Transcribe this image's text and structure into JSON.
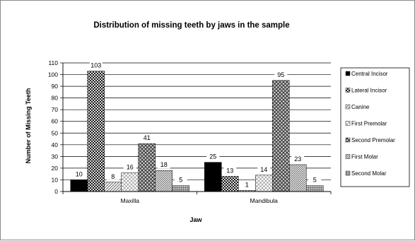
{
  "chart_data": {
    "type": "bar",
    "title": "Distribution of missing teeth by jaws in the sample",
    "xlabel": "Jaw",
    "ylabel": "Number of Missing Teeth",
    "categories": [
      "Maxilla",
      "Mandibula"
    ],
    "ylim": [
      0,
      110
    ],
    "yticks": [
      0,
      10,
      20,
      30,
      40,
      50,
      60,
      70,
      80,
      90,
      100,
      110
    ],
    "grid": true,
    "legend_position": "right",
    "series": [
      {
        "name": "Central Incisor",
        "values": [
          10,
          25
        ],
        "pattern": "solid"
      },
      {
        "name": "Lateral Incisor",
        "values": [
          103,
          13
        ],
        "pattern": "checker"
      },
      {
        "name": "Canine",
        "values": [
          8,
          1
        ],
        "pattern": "diag-light"
      },
      {
        "name": "First Premolar",
        "values": [
          16,
          14
        ],
        "pattern": "cross-light"
      },
      {
        "name": "Second Premolar",
        "values": [
          41,
          95
        ],
        "pattern": "diamond"
      },
      {
        "name": "First Molar",
        "values": [
          18,
          23
        ],
        "pattern": "diag-dense"
      },
      {
        "name": "Second Molar",
        "values": [
          5,
          5
        ],
        "pattern": "grid"
      }
    ]
  }
}
